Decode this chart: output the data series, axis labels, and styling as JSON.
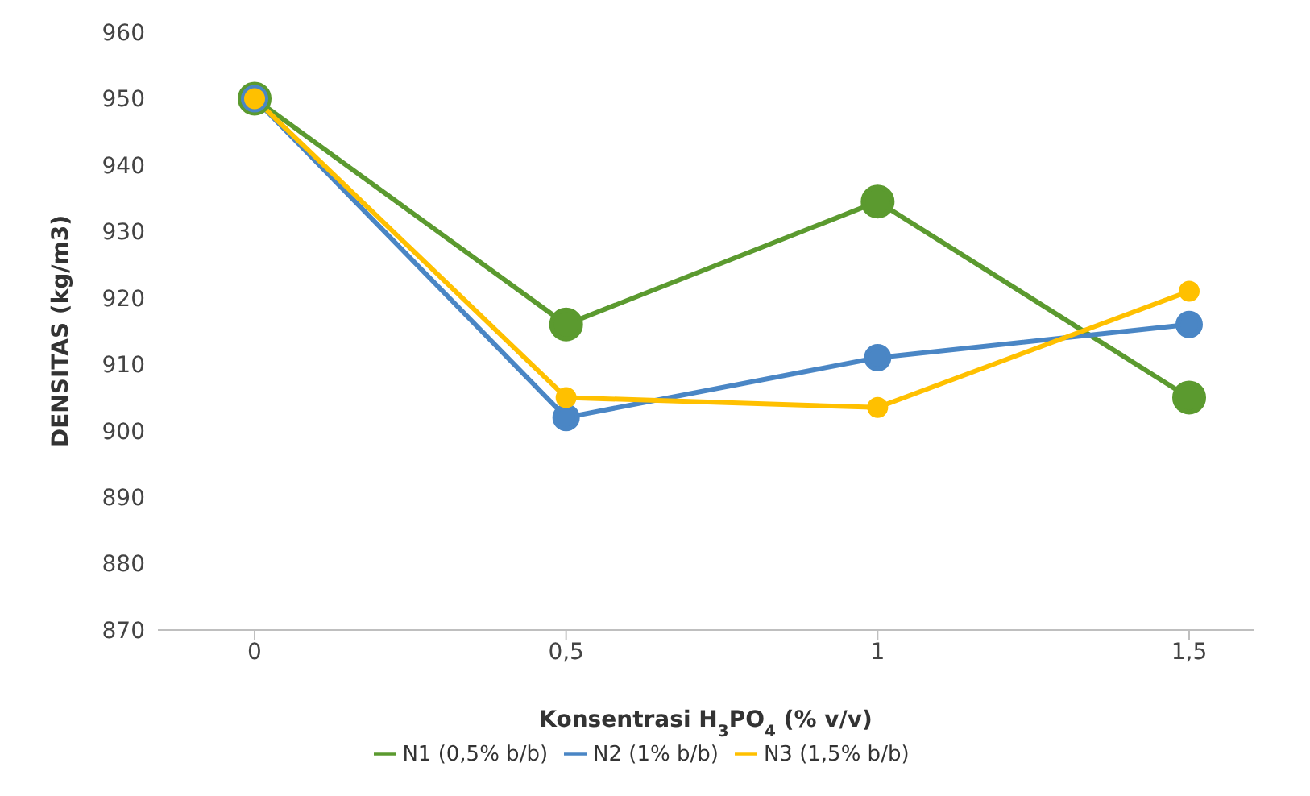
{
  "chart_data": {
    "type": "line",
    "xlabel": "Konsentrasi H$_{3}$PO$_{4}$ (% v/v)",
    "ylabel": "DENSITAS (kg/m3)",
    "categories": [
      "0",
      "0,5",
      "1",
      "1,5"
    ],
    "series": [
      {
        "name": "N1 (0,5% b/b)",
        "color": "#5b9a2f",
        "values": [
          950,
          916,
          934.5,
          905
        ]
      },
      {
        "name": "N2 (1% b/b)",
        "color": "#4a86c5",
        "values": [
          950,
          902,
          911,
          916
        ]
      },
      {
        "name": "N3 (1,5% b/b)",
        "color": "#ffc000",
        "values": [
          950,
          905,
          903.5,
          921
        ]
      }
    ],
    "ylim": [
      870,
      960
    ],
    "yticks": [
      870,
      880,
      890,
      900,
      910,
      920,
      930,
      940,
      950,
      960
    ],
    "grid": false,
    "legend": "bottom",
    "marker": "circle",
    "line_style": "solid"
  }
}
